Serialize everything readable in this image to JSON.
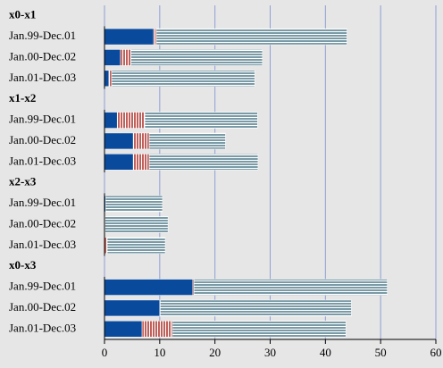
{
  "chart_data": {
    "type": "bar",
    "orientation": "horizontal",
    "stacked": true,
    "xlim": [
      0,
      60
    ],
    "xticks": [
      0,
      10,
      20,
      30,
      40,
      50,
      60
    ],
    "grid": true,
    "patterns": [
      "solid",
      "vertical",
      "horizontal"
    ],
    "colors": [
      "#0a4a9c",
      "#c0605a",
      "#7a9aa6"
    ],
    "groups": [
      {
        "label": "x0-x1",
        "categories": [
          "Jan.99-Dec.01",
          "Jan.00-Dec.02",
          "Jan.01-Dec.03"
        ],
        "series": [
          {
            "values": [
              8.9,
              2.9,
              0.8
            ]
          },
          {
            "values": [
              0.5,
              1.9,
              0.5
            ]
          },
          {
            "values": [
              34.5,
              23.8,
              25.9
            ]
          }
        ]
      },
      {
        "label": "x1-x2",
        "categories": [
          "Jan.99-Dec.01",
          "Jan.00-Dec.02",
          "Jan.01-Dec.03"
        ],
        "series": [
          {
            "values": [
              2.3,
              5.2,
              5.2
            ]
          },
          {
            "values": [
              5.0,
              2.9,
              2.9
            ]
          },
          {
            "values": [
              20.4,
              13.8,
              19.7
            ]
          }
        ]
      },
      {
        "label": "x2-x3",
        "categories": [
          "Jan.99-Dec.01",
          "Jan.00-Dec.02",
          "Jan.01-Dec.03"
        ],
        "series": [
          {
            "values": [
              0.2,
              0.1,
              0
            ]
          },
          {
            "values": [
              0,
              0,
              0.5
            ]
          },
          {
            "values": [
              10.3,
              11.4,
              10.5
            ]
          }
        ]
      },
      {
        "label": "x0-x3",
        "categories": [
          "Jan.99-Dec.01",
          "Jan.00-Dec.02",
          "Jan.01-Dec.03"
        ],
        "series": [
          {
            "values": [
              16.0,
              10.0,
              6.8
            ]
          },
          {
            "values": [
              0.2,
              0.1,
              5.5
            ]
          },
          {
            "values": [
              35.0,
              34.6,
              31.4
            ]
          }
        ]
      }
    ]
  }
}
